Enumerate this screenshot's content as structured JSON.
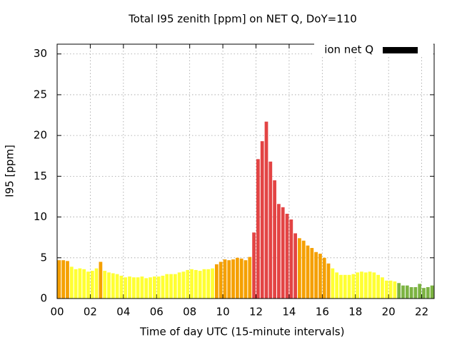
{
  "chart_data": {
    "type": "bar",
    "title": "Total I95 zenith [ppm] on NET Q, DoY=110",
    "x_label": "Time of day UTC (15-minute intervals)",
    "y_label": "I95 [ppm]",
    "xlim": [
      0,
      22.75
    ],
    "ylim": [
      0,
      31.2
    ],
    "xticks": [
      {
        "value": 0,
        "label": "00"
      },
      {
        "value": 2,
        "label": "02"
      },
      {
        "value": 4,
        "label": "04"
      },
      {
        "value": 6,
        "label": "06"
      },
      {
        "value": 8,
        "label": "08"
      },
      10,
      12,
      14,
      16,
      18,
      20,
      22
    ],
    "yticks": [
      0,
      5,
      10,
      15,
      20,
      25,
      30
    ],
    "grid": true,
    "legend": "top-right",
    "x": [
      0,
      0.25,
      0.5,
      0.75,
      1,
      1.25,
      1.5,
      1.75,
      2,
      2.25,
      2.5,
      2.75,
      3,
      3.25,
      3.5,
      3.75,
      4,
      4.25,
      4.5,
      4.75,
      5,
      5.25,
      5.5,
      5.75,
      6,
      6.25,
      6.5,
      6.75,
      7,
      7.25,
      7.5,
      7.75,
      8,
      8.25,
      8.5,
      8.75,
      9,
      9.25,
      9.5,
      9.75,
      10,
      10.25,
      10.5,
      10.75,
      11,
      11.25,
      11.5,
      11.75,
      12,
      12.25,
      12.5,
      12.75,
      13,
      13.25,
      13.5,
      13.75,
      14,
      14.25,
      14.5,
      14.75,
      15,
      15.25,
      15.5,
      15.75,
      16,
      16.25,
      16.5,
      16.75,
      17,
      17.25,
      17.5,
      17.75,
      18,
      18.25,
      18.5,
      18.75,
      19,
      19.25,
      19.5,
      19.75,
      20,
      20.25,
      20.5,
      20.75,
      21,
      21.25,
      21.5,
      21.75,
      22,
      22.25,
      22.5
    ],
    "series": [
      {
        "name": "ion net Q",
        "color": "#000000",
        "values": [
          4.7,
          4.7,
          4.6,
          3.9,
          3.6,
          3.7,
          3.6,
          3.3,
          3.4,
          3.7,
          4.5,
          3.4,
          3.2,
          3.1,
          3.0,
          2.8,
          2.6,
          2.7,
          2.6,
          2.6,
          2.7,
          2.5,
          2.6,
          2.7,
          2.7,
          2.8,
          3.0,
          3.0,
          3.0,
          3.2,
          3.3,
          3.5,
          3.6,
          3.5,
          3.4,
          3.6,
          3.6,
          3.7,
          4.2,
          4.5,
          4.8,
          4.7,
          4.8,
          5.0,
          4.9,
          4.7,
          5.1,
          8.1,
          17.1,
          19.3,
          21.7,
          16.8,
          14.5,
          11.6,
          11.2,
          10.4,
          9.7,
          8.0,
          7.4,
          7.1,
          6.5,
          6.2,
          5.7,
          5.5,
          5.0,
          4.3,
          3.7,
          3.2,
          2.9,
          2.9,
          2.9,
          3.0,
          3.2,
          3.3,
          3.2,
          3.3,
          3.2,
          2.9,
          2.6,
          2.2,
          2.2,
          2.1,
          1.9,
          1.6,
          1.6,
          1.4,
          1.4,
          1.8,
          1.3,
          1.4,
          1.6
        ],
        "colors": [
          "#f5a000",
          "#f5a000",
          "#f5a000",
          "#ffff33",
          "#ffff33",
          "#ffff33",
          "#ffff33",
          "#ffff33",
          "#ffff33",
          "#ffff33",
          "#f5a000",
          "#ffff33",
          "#ffff33",
          "#ffff33",
          "#ffff33",
          "#ffff33",
          "#ffff33",
          "#ffff33",
          "#ffff33",
          "#ffff33",
          "#ffff33",
          "#ffff33",
          "#ffff33",
          "#ffff33",
          "#ffff33",
          "#ffff33",
          "#ffff33",
          "#ffff33",
          "#ffff33",
          "#ffff33",
          "#ffff33",
          "#ffff33",
          "#ffff33",
          "#ffff33",
          "#ffff33",
          "#ffff33",
          "#ffff33",
          "#ffff33",
          "#f5a000",
          "#f5a000",
          "#f5a000",
          "#f5a000",
          "#f5a000",
          "#f5a000",
          "#f5a000",
          "#f5a000",
          "#f5a000",
          "#e34444",
          "#e34444",
          "#e34444",
          "#e34444",
          "#e34444",
          "#e34444",
          "#e34444",
          "#e34444",
          "#e34444",
          "#e34444",
          "#e34444",
          "#f5a000",
          "#f5a000",
          "#f5a000",
          "#f5a000",
          "#f5a000",
          "#f5a000",
          "#f5a000",
          "#f5a000",
          "#ffff33",
          "#ffff33",
          "#ffff33",
          "#ffff33",
          "#ffff33",
          "#ffff33",
          "#ffff33",
          "#ffff33",
          "#ffff33",
          "#ffff33",
          "#ffff33",
          "#ffff33",
          "#ffff33",
          "#ffff33",
          "#ffff33",
          "#ffff33",
          "#7cb342",
          "#7cb342",
          "#7cb342",
          "#7cb342",
          "#7cb342",
          "#7cb342",
          "#7cb342",
          "#7cb342",
          "#7cb342"
        ]
      }
    ]
  }
}
